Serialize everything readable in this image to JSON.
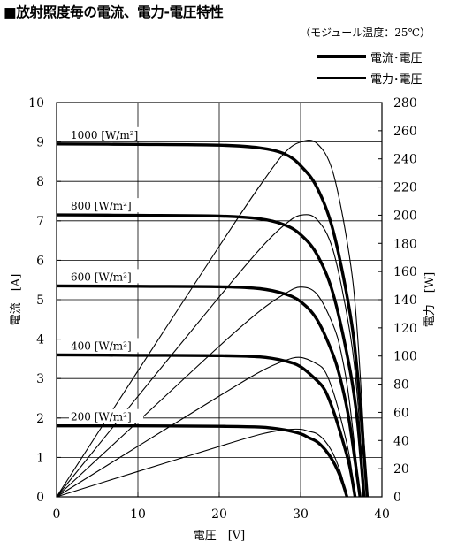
{
  "title": "■放射照度毎の電流、電力-電圧特性",
  "temperature_note": "（モジュール温度：25℃）",
  "legend": [
    {
      "label": "電流･電圧",
      "style": "thick"
    },
    {
      "label": "電力･電圧",
      "style": "thin"
    }
  ],
  "chart_data": {
    "type": "line",
    "title": "■放射照度毎の電流、電力-電圧特性",
    "xlabel": "電圧　[V]",
    "ylabel_left": "電流　[A]",
    "ylabel_right": "電力　[W]",
    "xlim": [
      0,
      40
    ],
    "ylim_left": [
      0,
      10
    ],
    "ylim_right": [
      0,
      280
    ],
    "x_ticks": [
      "0",
      "10",
      "20",
      "30",
      "40"
    ],
    "y_left_ticks": [
      "0",
      "1",
      "2",
      "3",
      "4",
      "5",
      "6",
      "7",
      "8",
      "9",
      "10"
    ],
    "y_right_ticks": [
      "0",
      "20",
      "40",
      "60",
      "80",
      "100",
      "120",
      "140",
      "160",
      "180",
      "200",
      "220",
      "240",
      "260",
      "280"
    ],
    "grid": true,
    "legend_position": "top-right",
    "curves": [
      {
        "irradiance_label": "1000 [W/m²]",
        "isc": 8.95,
        "voc": 38.2,
        "current": [
          [
            0,
            8.95
          ],
          [
            10,
            8.94
          ],
          [
            20,
            8.92
          ],
          [
            25,
            8.85
          ],
          [
            28,
            8.7
          ],
          [
            30,
            8.4
          ],
          [
            32,
            7.85
          ],
          [
            34,
            6.75
          ],
          [
            36,
            4.75
          ],
          [
            37,
            3.1
          ],
          [
            38.2,
            0
          ]
        ],
        "power": [
          [
            0,
            0
          ],
          [
            10,
            89.4
          ],
          [
            20,
            178
          ],
          [
            25,
            221
          ],
          [
            28,
            244
          ],
          [
            30,
            252
          ],
          [
            32,
            251
          ],
          [
            34,
            230
          ],
          [
            36,
            171
          ],
          [
            37,
            115
          ],
          [
            38.2,
            0
          ]
        ]
      },
      {
        "irradiance_label": "800 [W/m²]",
        "isc": 7.15,
        "voc": 37.8,
        "current": [
          [
            0,
            7.15
          ],
          [
            10,
            7.14
          ],
          [
            20,
            7.12
          ],
          [
            25,
            7.05
          ],
          [
            28,
            6.9
          ],
          [
            30,
            6.65
          ],
          [
            32,
            6.15
          ],
          [
            34,
            5.15
          ],
          [
            36,
            3.3
          ],
          [
            37,
            1.9
          ],
          [
            37.8,
            0
          ]
        ],
        "power": [
          [
            0,
            0
          ],
          [
            10,
            71.4
          ],
          [
            20,
            142
          ],
          [
            25,
            176
          ],
          [
            28,
            193
          ],
          [
            30,
            200
          ],
          [
            32,
            197
          ],
          [
            34,
            175
          ],
          [
            36,
            119
          ],
          [
            37,
            70
          ],
          [
            37.8,
            0
          ]
        ]
      },
      {
        "irradiance_label": "600 [W/m²]",
        "isc": 5.35,
        "voc": 37.3,
        "current": [
          [
            0,
            5.35
          ],
          [
            10,
            5.34
          ],
          [
            20,
            5.33
          ],
          [
            25,
            5.28
          ],
          [
            28,
            5.15
          ],
          [
            30,
            4.95
          ],
          [
            32,
            4.5
          ],
          [
            34,
            3.6
          ],
          [
            35,
            2.9
          ],
          [
            36,
            1.9
          ],
          [
            37.3,
            0
          ]
        ],
        "power": [
          [
            0,
            0
          ],
          [
            10,
            53.4
          ],
          [
            20,
            107
          ],
          [
            25,
            132
          ],
          [
            28,
            144
          ],
          [
            30,
            149
          ],
          [
            32,
            144
          ],
          [
            34,
            122
          ],
          [
            35,
            102
          ],
          [
            36,
            68
          ],
          [
            37.3,
            0
          ]
        ]
      },
      {
        "irradiance_label": "400 [W/m²]",
        "isc": 3.6,
        "voc": 36.7,
        "current": [
          [
            0,
            3.6
          ],
          [
            10,
            3.59
          ],
          [
            20,
            3.58
          ],
          [
            25,
            3.55
          ],
          [
            28,
            3.45
          ],
          [
            30,
            3.3
          ],
          [
            32,
            2.95
          ],
          [
            33,
            2.7
          ],
          [
            34,
            2.2
          ],
          [
            35,
            1.55
          ],
          [
            36,
            0.8
          ],
          [
            36.7,
            0
          ]
        ],
        "power": [
          [
            0,
            0
          ],
          [
            10,
            35.9
          ],
          [
            20,
            71.6
          ],
          [
            25,
            88.8
          ],
          [
            28,
            96.6
          ],
          [
            30,
            99
          ],
          [
            32,
            94.4
          ],
          [
            33,
            89.1
          ],
          [
            34,
            74.8
          ],
          [
            35,
            54.3
          ],
          [
            36,
            28.8
          ],
          [
            36.7,
            0
          ]
        ]
      },
      {
        "irradiance_label": "200 [W/m²]",
        "isc": 1.8,
        "voc": 35.7,
        "current": [
          [
            0,
            1.8
          ],
          [
            10,
            1.8
          ],
          [
            20,
            1.79
          ],
          [
            25,
            1.77
          ],
          [
            28,
            1.7
          ],
          [
            30,
            1.6
          ],
          [
            31,
            1.5
          ],
          [
            32,
            1.4
          ],
          [
            33,
            1.2
          ],
          [
            34,
            0.9
          ],
          [
            35,
            0.45
          ],
          [
            35.7,
            0
          ]
        ],
        "power": [
          [
            0,
            0
          ],
          [
            10,
            18
          ],
          [
            20,
            35.8
          ],
          [
            25,
            44.3
          ],
          [
            28,
            47.6
          ],
          [
            30,
            48
          ],
          [
            31,
            46.5
          ],
          [
            32,
            44.8
          ],
          [
            33,
            39.6
          ],
          [
            34,
            30.6
          ],
          [
            35,
            15.8
          ],
          [
            35.7,
            0
          ]
        ]
      }
    ]
  }
}
